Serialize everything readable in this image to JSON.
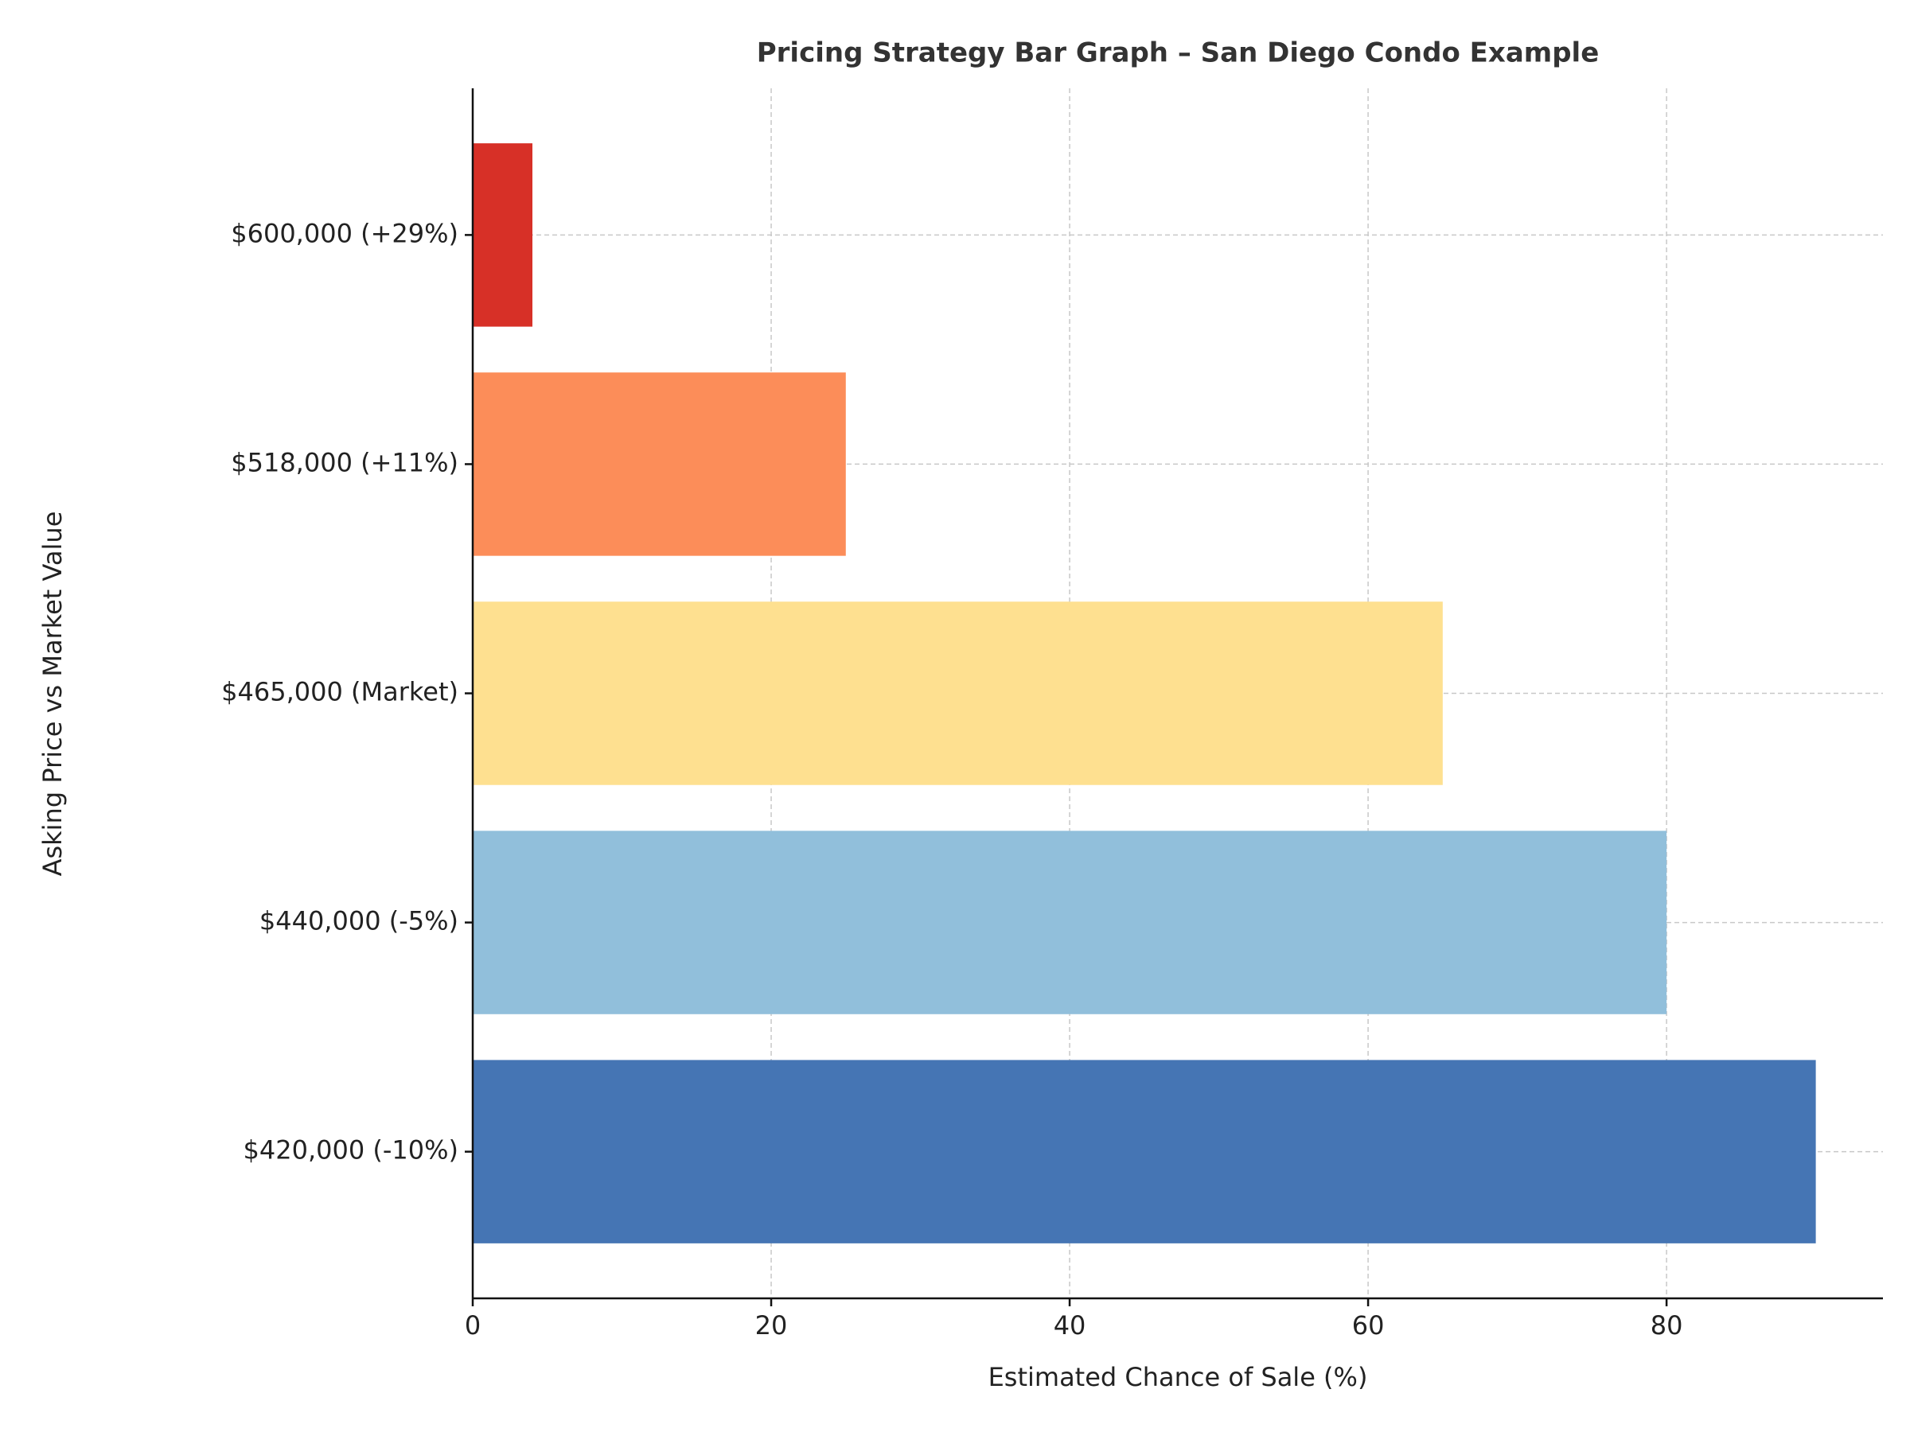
{
  "chart_data": {
    "type": "barh",
    "title": "Pricing Strategy Bar Graph – San Diego Condo Example",
    "xlabel": "Estimated Chance of Sale (%)",
    "ylabel": "Asking Price vs Market Value",
    "categories": [
      "$420,000 (-10%)",
      "$440,000 (-5%)",
      "$465,000 (Market)",
      "$518,000 (+11%)",
      "$600,000 (+29%)"
    ],
    "values": [
      90,
      80,
      65,
      25,
      4
    ],
    "colors": [
      "#4575b4",
      "#91bfdb",
      "#fee090",
      "#fc8d59",
      "#d73027"
    ],
    "xlim": [
      0,
      94.5
    ],
    "xticks": [
      0,
      20,
      40,
      60,
      80
    ],
    "grid": true
  }
}
